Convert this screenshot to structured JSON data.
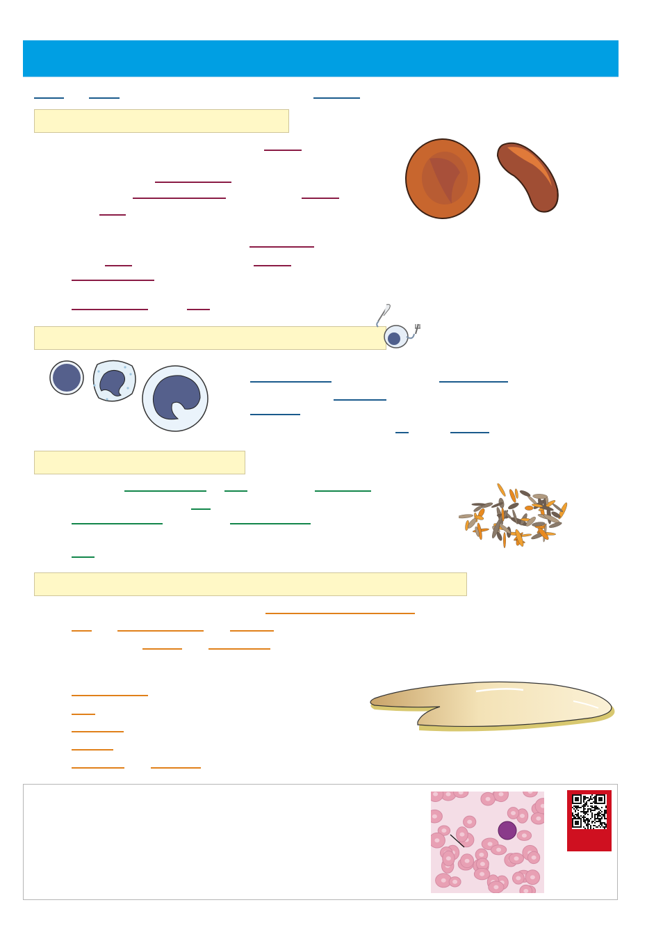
{
  "page": {
    "banner_color": "#009fe3",
    "section_fill": "#fff8c6"
  },
  "sections": [
    {
      "id": "section-red-blood-cells",
      "title": ""
    },
    {
      "id": "section-white-blood-cells",
      "title": ""
    },
    {
      "id": "section-platelets",
      "title": ""
    },
    {
      "id": "section-plasma",
      "title": ""
    }
  ],
  "blank_colors": {
    "intro": "#1a5a8c",
    "red_cells": "#8a1b45",
    "white_cells": "#1a5a8c",
    "platelets": "#12864a",
    "plasma": "#e0801a"
  },
  "illustrations": [
    {
      "name": "normal-red-blood-cell",
      "color": "#c8662e"
    },
    {
      "name": "sickle-red-blood-cell",
      "color": "#a04e34"
    },
    {
      "name": "cell-with-knife-and-fork",
      "color": "#4f5f8c"
    },
    {
      "name": "lymphocyte",
      "color": "#55608c"
    },
    {
      "name": "neutrophil",
      "color": "#55608c"
    },
    {
      "name": "monocyte",
      "color": "#55608c"
    },
    {
      "name": "platelet-cluster",
      "color": "#f0a030"
    },
    {
      "name": "plasma-puddle",
      "color": "#f1dca8"
    },
    {
      "name": "blood-smear-micrograph",
      "color": "#f4dde6"
    },
    {
      "name": "qr-code",
      "color": "#cf1020"
    }
  ]
}
